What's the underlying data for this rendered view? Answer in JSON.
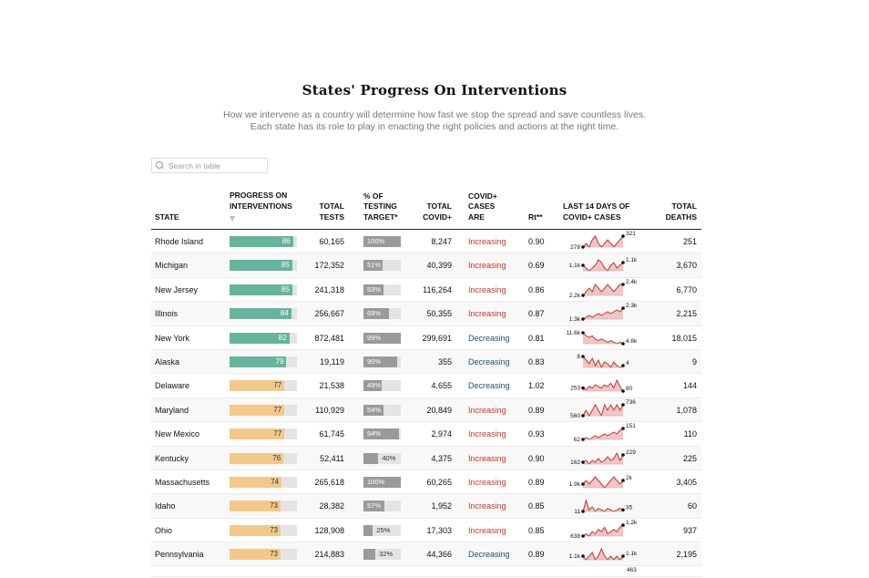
{
  "header": {
    "title": "States' Progress On Interventions",
    "subtitle_line1": "How we intervene as a country will determine how fast we stop the spread and save countless lives.",
    "subtitle_line2": "Each state has its role to play in enacting the right policies and actions at the right time."
  },
  "search": {
    "placeholder": "Search in table"
  },
  "colors": {
    "green": "#66b49d",
    "orange": "#f3c98a",
    "increasing": "#c0392b",
    "decreasing": "#1f4e79",
    "spark_line": "#c0392b",
    "spark_fill": "#f4c4c4"
  },
  "columns": {
    "state": "STATE",
    "progress_l1": "PROGRESS ON",
    "progress_l2": "INTERVENTIONS",
    "tests_l1": "TOTAL",
    "tests_l2": "TESTS",
    "target_l1": "% OF",
    "target_l2": "TESTING",
    "target_l3": "TARGET*",
    "covid_l1": "TOTAL",
    "covid_l2": "COVID+",
    "trend_l1": "COVID+",
    "trend_l2": "CASES",
    "trend_l3": "ARE",
    "rt": "Rt**",
    "spark_l1": "LAST 14 DAYS OF",
    "spark_l2": "COVID+ CASES",
    "deaths_l1": "TOTAL",
    "deaths_l2": "DEATHS"
  },
  "rows": [
    {
      "state": "Rhode Island",
      "progress": 86,
      "tests": "60,165",
      "target": 100,
      "target_label": "100%",
      "covid": "8,247",
      "trend": "Increasing",
      "rt": "0.90",
      "spark_start": "278",
      "spark_end": "321",
      "spark": [
        5,
        6,
        5,
        7,
        8,
        6,
        5,
        6,
        7,
        6,
        5,
        6,
        7,
        8
      ],
      "deaths": "251"
    },
    {
      "state": "Michigan",
      "progress": 85,
      "tests": "172,352",
      "target": 51,
      "target_label": "51%",
      "covid": "40,399",
      "trend": "Increasing",
      "rt": "0.69",
      "spark_start": "1.1k",
      "spark_end": "1.1k",
      "spark": [
        6,
        5,
        4,
        5,
        6,
        8,
        7,
        5,
        4,
        6,
        7,
        5,
        6,
        7
      ],
      "deaths": "3,670"
    },
    {
      "state": "New Jersey",
      "progress": 85,
      "tests": "241,318",
      "target": 53,
      "target_label": "53%",
      "covid": "116,264",
      "trend": "Increasing",
      "rt": "0.86",
      "spark_start": "2.2k",
      "spark_end": "2.4k",
      "spark": [
        5,
        6,
        7,
        6,
        8,
        7,
        6,
        7,
        8,
        7,
        6,
        7,
        8,
        8
      ],
      "deaths": "6,770"
    },
    {
      "state": "Illinois",
      "progress": 84,
      "tests": "256,667",
      "target": 69,
      "target_label": "69%",
      "covid": "50,355",
      "trend": "Increasing",
      "rt": "0.87",
      "spark_start": "1.3k",
      "spark_end": "2.3k",
      "spark": [
        3,
        4,
        5,
        4,
        5,
        6,
        5,
        6,
        7,
        6,
        7,
        8,
        7,
        9
      ],
      "deaths": "2,215"
    },
    {
      "state": "New York",
      "progress": 82,
      "tests": "872,481",
      "target": 99,
      "target_label": "99%",
      "covid": "299,691",
      "trend": "Decreasing",
      "rt": "0.81",
      "spark_start": "11.6k",
      "spark_end": "4.6k",
      "spark": [
        10,
        8,
        7,
        8,
        6,
        5,
        6,
        5,
        4,
        5,
        4,
        3,
        4,
        3
      ],
      "deaths": "18,015"
    },
    {
      "state": "Alaska",
      "progress": 79,
      "tests": "19,119",
      "target": 90,
      "target_label": "90%",
      "covid": "355",
      "trend": "Decreasing",
      "rt": "0.83",
      "spark_start": "8",
      "spark_end": "4",
      "spark": [
        8,
        6,
        4,
        7,
        3,
        6,
        2,
        5,
        4,
        2,
        5,
        3,
        2,
        3
      ],
      "deaths": "9"
    },
    {
      "state": "Delaware",
      "progress": 77,
      "tests": "21,538",
      "target": 49,
      "target_label": "49%",
      "covid": "4,655",
      "trend": "Decreasing",
      "rt": "1.02",
      "spark_start": "253",
      "spark_end": "80",
      "spark": [
        4,
        3,
        5,
        4,
        6,
        5,
        4,
        6,
        5,
        7,
        4,
        9,
        5,
        2
      ],
      "deaths": "144"
    },
    {
      "state": "Maryland",
      "progress": 77,
      "tests": "110,929",
      "target": 54,
      "target_label": "54%",
      "covid": "20,849",
      "trend": "Increasing",
      "rt": "0.89",
      "spark_start": "560",
      "spark_end": "736",
      "spark": [
        5,
        6,
        5,
        6,
        7,
        6,
        5,
        7,
        6,
        7,
        6,
        7,
        6,
        7
      ],
      "deaths": "1,078"
    },
    {
      "state": "New Mexico",
      "progress": 77,
      "tests": "61,745",
      "target": 94,
      "target_label": "94%",
      "covid": "2,974",
      "trend": "Increasing",
      "rt": "0.93",
      "spark_start": "62",
      "spark_end": "151",
      "spark": [
        3,
        4,
        3,
        4,
        5,
        4,
        5,
        6,
        5,
        6,
        7,
        6,
        8,
        9
      ],
      "deaths": "110"
    },
    {
      "state": "Kentucky",
      "progress": 76,
      "tests": "52,411",
      "target": 40,
      "target_label": "40%",
      "covid": "4,375",
      "trend": "Increasing",
      "rt": "0.90",
      "spark_start": "162",
      "spark_end": "229",
      "spark": [
        4,
        5,
        3,
        5,
        4,
        6,
        4,
        5,
        7,
        5,
        6,
        9,
        5,
        8
      ],
      "deaths": "225"
    },
    {
      "state": "Massachusetts",
      "progress": 74,
      "tests": "265,618",
      "target": 100,
      "target_label": "100%",
      "covid": "60,265",
      "trend": "Increasing",
      "rt": "0.89",
      "spark_start": "1.9k",
      "spark_end": "2k",
      "spark": [
        6,
        7,
        6,
        7,
        8,
        7,
        6,
        5,
        6,
        7,
        8,
        7,
        6,
        7
      ],
      "deaths": "3,405"
    },
    {
      "state": "Idaho",
      "progress": 73,
      "tests": "28,382",
      "target": 57,
      "target_label": "57%",
      "covid": "1,952",
      "trend": "Increasing",
      "rt": "0.85",
      "spark_start": "11",
      "spark_end": "35",
      "spark": [
        2,
        9,
        3,
        5,
        2,
        4,
        3,
        2,
        4,
        3,
        2,
        3,
        4,
        3
      ],
      "deaths": "60"
    },
    {
      "state": "Ohio",
      "progress": 73,
      "tests": "128,908",
      "target": 25,
      "target_label": "25%",
      "covid": "17,303",
      "trend": "Increasing",
      "rt": "0.85",
      "spark_start": "638",
      "spark_end": "1.2k",
      "spark": [
        3,
        4,
        3,
        5,
        4,
        6,
        5,
        7,
        4,
        5,
        6,
        5,
        7,
        8
      ],
      "deaths": "937"
    },
    {
      "state": "Pennsylvania",
      "progress": 73,
      "tests": "214,883",
      "target": 32,
      "target_label": "32%",
      "covid": "44,366",
      "trend": "Decreasing",
      "rt": "0.89",
      "spark_start": "1.1k",
      "spark_end": "1.1k",
      "spark": [
        6,
        5,
        6,
        7,
        5,
        6,
        8,
        6,
        5,
        6,
        5,
        6,
        5,
        6
      ],
      "deaths": "2,195"
    }
  ],
  "partial_row": {
    "spark_end": "463"
  }
}
